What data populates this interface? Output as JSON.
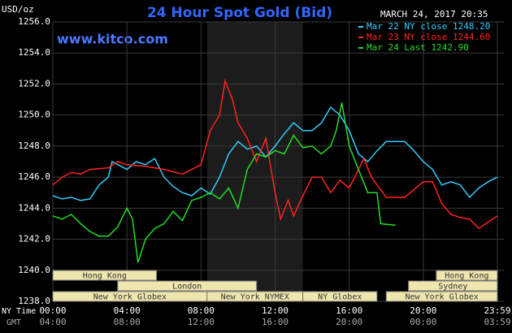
{
  "chart_data": {
    "type": "line",
    "title": "24 Hour Spot Gold (Bid)",
    "unit_label": "USD/oz",
    "timestamp": "MARCH 24, 2017 20:35",
    "site": "www.kitco.com",
    "row_labels": [
      "NY Time",
      "GMT"
    ],
    "xlim": [
      0,
      24
    ],
    "xticks": [
      {
        "value": 0,
        "label": "00:00"
      },
      {
        "value": 4,
        "label": "04:00"
      },
      {
        "value": 8,
        "label": "08:00"
      },
      {
        "value": 12,
        "label": "12:00"
      },
      {
        "value": 16,
        "label": "16:00"
      },
      {
        "value": 20,
        "label": "20:00"
      },
      {
        "value": 24,
        "label": "23:59"
      }
    ],
    "gmt_labels": [
      "04:00",
      "08:00",
      "12:00",
      "16:00",
      "20:00",
      "00:00",
      "03:59"
    ],
    "ylim": [
      1238,
      1256
    ],
    "yticks": [
      {
        "value": 1238,
        "label": "1238.0"
      },
      {
        "value": 1240,
        "label": "1240.0"
      },
      {
        "value": 1242,
        "label": "1242.0"
      },
      {
        "value": 1244,
        "label": "1244.0"
      },
      {
        "value": 1246,
        "label": "1246.0"
      },
      {
        "value": 1248,
        "label": "1248.0"
      },
      {
        "value": 1250,
        "label": "1250.0"
      },
      {
        "value": 1252,
        "label": "1252.0"
      },
      {
        "value": 1254,
        "label": "1254.0"
      },
      {
        "value": 1256,
        "label": "1256.0"
      }
    ],
    "grid": true,
    "shaded_region": [
      8.33,
      13.5
    ],
    "session_color": "#efe6ad",
    "sessions": [
      {
        "name": "Hong Kong",
        "row": 0,
        "start": 0,
        "end": 5.6
      },
      {
        "name": "Hong Kong",
        "row": 0,
        "start": 20.7,
        "end": 24
      },
      {
        "name": "London",
        "row": 1,
        "start": 3.5,
        "end": 11
      },
      {
        "name": "Sydney",
        "row": 1,
        "start": 19.2,
        "end": 24
      },
      {
        "name": "New York Globex",
        "row": 2,
        "start": 0,
        "end": 8.33
      },
      {
        "name": "New York NYMEX",
        "row": 2,
        "start": 8.33,
        "end": 13.5
      },
      {
        "name": "NY Globex",
        "row": 2,
        "start": 13.5,
        "end": 17.5
      },
      {
        "name": "New York Globex",
        "row": 2,
        "start": 18,
        "end": 24
      }
    ],
    "series": [
      {
        "name": "Mar 22 NY close 1248.20",
        "color": "#33ccff",
        "x": [
          0,
          0.5,
          1,
          1.5,
          2,
          2.5,
          3,
          3.2,
          4,
          4.5,
          5,
          5.5,
          6,
          6.5,
          7,
          7.5,
          8,
          8.5,
          9,
          9.5,
          10,
          10.5,
          11,
          11.5,
          12,
          12.5,
          13,
          13.5,
          14,
          14.5,
          15,
          15.5,
          16,
          16.5,
          17,
          17.5,
          18,
          19,
          19.5,
          20,
          20.5,
          21,
          21.5,
          22,
          22.5,
          23,
          23.5,
          24
        ],
        "values": [
          1244.8,
          1244.6,
          1244.7,
          1244.5,
          1244.6,
          1245.5,
          1246,
          1247,
          1246.5,
          1247,
          1246.8,
          1247.2,
          1246,
          1245.4,
          1245,
          1244.8,
          1245.3,
          1244.9,
          1246,
          1247.5,
          1248.3,
          1247.8,
          1248,
          1247.3,
          1248,
          1248.8,
          1249.5,
          1249,
          1249,
          1249.5,
          1250.5,
          1250,
          1249,
          1247.5,
          1247,
          1247.7,
          1248.3,
          1248.3,
          1247.7,
          1247,
          1246.5,
          1245.5,
          1245.7,
          1245.5,
          1244.7,
          1245.3,
          1245.7,
          1246
        ]
      },
      {
        "name": "Mar 23 NY close 1244.60",
        "color": "#ff2222",
        "x": [
          0,
          0.5,
          1,
          1.5,
          2,
          3,
          3.5,
          4,
          5,
          6,
          7,
          8,
          8.5,
          9,
          9.3,
          9.7,
          10,
          10.5,
          11,
          11.5,
          12,
          12.3,
          12.7,
          13,
          13.5,
          14,
          14.5,
          15,
          15.5,
          16,
          16.5,
          16.8,
          17.2,
          17.5,
          18,
          19,
          19.5,
          20,
          20.5,
          21,
          21.5,
          22,
          22.5,
          23,
          23.5,
          24
        ],
        "values": [
          1245.5,
          1246,
          1246.3,
          1246.2,
          1246.5,
          1246.6,
          1247,
          1246.8,
          1246.7,
          1246.5,
          1246.2,
          1246.8,
          1249,
          1250,
          1252.2,
          1251,
          1249.5,
          1248.5,
          1247,
          1248.5,
          1245,
          1243.3,
          1244.5,
          1243.5,
          1244.8,
          1246,
          1246,
          1245,
          1245.8,
          1245.3,
          1246.5,
          1247.2,
          1246,
          1245.5,
          1244.7,
          1244.7,
          1245.2,
          1245.7,
          1245.7,
          1244.3,
          1243.6,
          1243.4,
          1243.3,
          1242.7,
          1243.1,
          1243.5
        ]
      },
      {
        "name": "Mar 24 Last 1242.90",
        "color": "#22dd22",
        "x": [
          0,
          0.5,
          1,
          1.5,
          2,
          2.5,
          3,
          3.5,
          4,
          4.3,
          4.6,
          5,
          5.5,
          6,
          6.5,
          7,
          7.5,
          8,
          8.5,
          9,
          9.5,
          10,
          10.5,
          11,
          11.5,
          12,
          12.5,
          13,
          13.5,
          14,
          14.5,
          15,
          15.3,
          15.6,
          16,
          16.5,
          17,
          17.5,
          17.7,
          18.5
        ],
        "values": [
          1243.5,
          1243.3,
          1243.6,
          1243,
          1242.5,
          1242.2,
          1242.2,
          1242.8,
          1244,
          1243.3,
          1240.5,
          1242,
          1242.7,
          1243,
          1243.8,
          1243.2,
          1244.5,
          1244.7,
          1245,
          1244.6,
          1245.3,
          1244,
          1246.5,
          1247.5,
          1247.3,
          1247.7,
          1247.5,
          1248.7,
          1247.9,
          1248,
          1247.5,
          1248,
          1249,
          1250.8,
          1248,
          1246.5,
          1245,
          1245,
          1243,
          1242.9
        ]
      }
    ]
  }
}
